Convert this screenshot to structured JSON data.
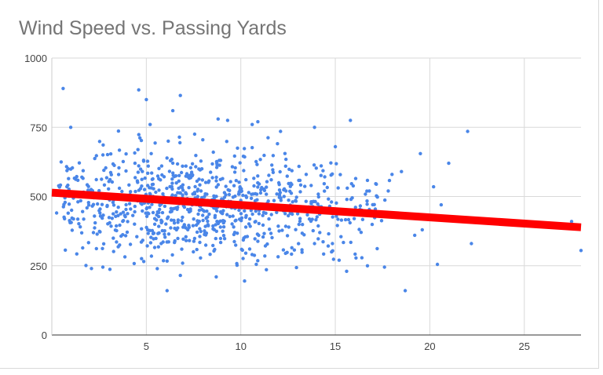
{
  "chart_data": {
    "type": "scatter",
    "title": "Wind Speed vs. Passing Yards",
    "xlabel": "",
    "ylabel": "",
    "xlim": [
      0,
      28
    ],
    "ylim": [
      0,
      1000
    ],
    "x_ticks": [
      5,
      10,
      15,
      20,
      25
    ],
    "y_ticks": [
      0,
      250,
      500,
      750,
      1000
    ],
    "grid": true,
    "colors": {
      "points": "#4a86e8",
      "trendline": "#ff0000",
      "grid": "#d9d9d9"
    },
    "trendline": {
      "x": [
        0,
        28
      ],
      "y": [
        514,
        389
      ]
    },
    "outliers": [
      {
        "x": 0.6,
        "y": 890
      },
      {
        "x": 4.6,
        "y": 885
      },
      {
        "x": 6.8,
        "y": 865
      },
      {
        "x": 5.0,
        "y": 850
      },
      {
        "x": 6.4,
        "y": 810
      },
      {
        "x": 1.0,
        "y": 750
      },
      {
        "x": 5.2,
        "y": 760
      },
      {
        "x": 8.8,
        "y": 780
      },
      {
        "x": 9.3,
        "y": 775
      },
      {
        "x": 10.9,
        "y": 770
      },
      {
        "x": 13.9,
        "y": 750
      },
      {
        "x": 15.8,
        "y": 775
      },
      {
        "x": 22.0,
        "y": 735
      },
      {
        "x": 12.1,
        "y": 735
      },
      {
        "x": 10.6,
        "y": 760
      },
      {
        "x": 6.1,
        "y": 160
      },
      {
        "x": 18.7,
        "y": 160
      },
      {
        "x": 10.2,
        "y": 195
      },
      {
        "x": 8.7,
        "y": 210
      },
      {
        "x": 6.8,
        "y": 215
      },
      {
        "x": 15.2,
        "y": 270
      },
      {
        "x": 20.4,
        "y": 255
      },
      {
        "x": 22.2,
        "y": 330
      },
      {
        "x": 27.5,
        "y": 410
      },
      {
        "x": 28.0,
        "y": 305
      },
      {
        "x": 19.5,
        "y": 655
      },
      {
        "x": 21.0,
        "y": 620
      },
      {
        "x": 18.0,
        "y": 580
      },
      {
        "x": 18.5,
        "y": 590
      },
      {
        "x": 20.2,
        "y": 535
      },
      {
        "x": 19.6,
        "y": 380
      },
      {
        "x": 17.6,
        "y": 245
      },
      {
        "x": 16.7,
        "y": 250
      },
      {
        "x": 15.6,
        "y": 230
      },
      {
        "x": 2.1,
        "y": 240
      },
      {
        "x": 2.7,
        "y": 245
      },
      {
        "x": 15.0,
        "y": 680
      },
      {
        "x": 16.8,
        "y": 520
      },
      {
        "x": 17.2,
        "y": 435
      },
      {
        "x": 19.7,
        "y": 430
      },
      {
        "x": 20.6,
        "y": 470
      },
      {
        "x": 17.8,
        "y": 520
      },
      {
        "x": 19.2,
        "y": 360
      },
      {
        "x": 16.0,
        "y": 420
      },
      {
        "x": 15.3,
        "y": 355
      },
      {
        "x": 14.8,
        "y": 300
      },
      {
        "x": 13.9,
        "y": 330
      },
      {
        "x": 12.7,
        "y": 315
      }
    ]
  }
}
